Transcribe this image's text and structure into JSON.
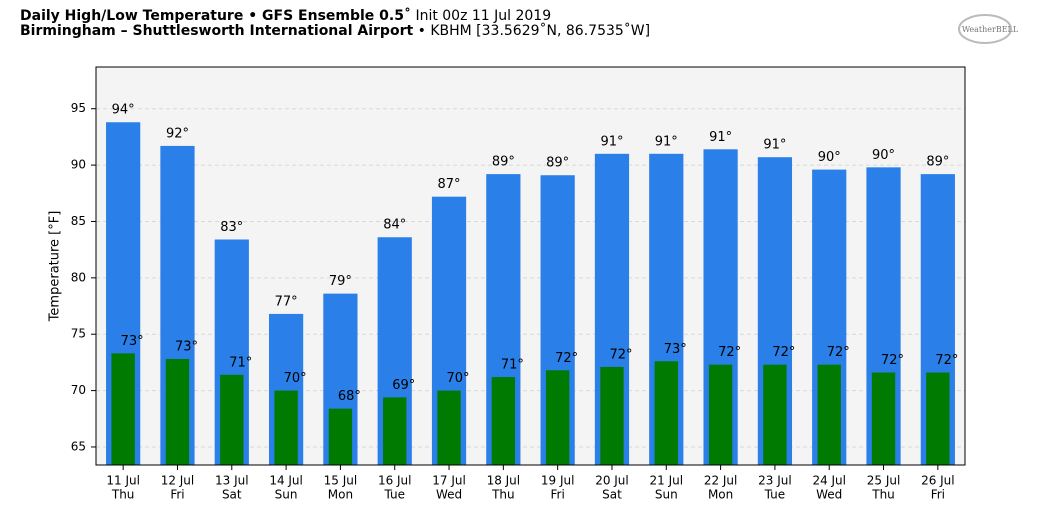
{
  "chart_data": {
    "type": "bar",
    "title": "Daily High/Low Temperature • GFS Ensemble 0.5˚",
    "title_note": "Init 00z 11 Jul 2019",
    "subtitle": "Birmingham – Shuttlesworth International Airport",
    "subtitle_note": "• KBHM [33.5629˚N, 86.7535˚W]",
    "logo": "WeatherBELL",
    "y_label": "Temperature [°F]",
    "categories": [
      [
        "11 Jul",
        "Thu"
      ],
      [
        "12 Jul",
        "Fri"
      ],
      [
        "13 Jul",
        "Sat"
      ],
      [
        "14 Jul",
        "Sun"
      ],
      [
        "15 Jul",
        "Mon"
      ],
      [
        "16 Jul",
        "Tue"
      ],
      [
        "17 Jul",
        "Wed"
      ],
      [
        "18 Jul",
        "Thu"
      ],
      [
        "19 Jul",
        "Fri"
      ],
      [
        "20 Jul",
        "Sat"
      ],
      [
        "21 Jul",
        "Sun"
      ],
      [
        "22 Jul",
        "Mon"
      ],
      [
        "23 Jul",
        "Tue"
      ],
      [
        "24 Jul",
        "Wed"
      ],
      [
        "25 Jul",
        "Thu"
      ],
      [
        "26 Jul",
        "Fri"
      ]
    ],
    "series": [
      {
        "name": "High",
        "color": "#2b7fe8",
        "values": [
          93.8,
          91.7,
          83.4,
          76.8,
          78.6,
          83.6,
          87.2,
          89.2,
          89.1,
          91.0,
          91.0,
          91.4,
          90.7,
          89.6,
          89.8,
          89.2
        ],
        "value_labels": [
          "94°",
          "92°",
          "83°",
          "77°",
          "79°",
          "84°",
          "87°",
          "89°",
          "89°",
          "91°",
          "91°",
          "91°",
          "91°",
          "90°",
          "90°",
          "89°"
        ]
      },
      {
        "name": "Low",
        "color": "#007a00",
        "values": [
          73.3,
          72.8,
          71.4,
          70.0,
          68.4,
          69.4,
          70.0,
          71.2,
          71.8,
          72.1,
          72.6,
          72.3,
          72.3,
          72.3,
          71.6,
          71.6
        ],
        "value_labels": [
          "73°",
          "73°",
          "71°",
          "70°",
          "68°",
          "69°",
          "70°",
          "71°",
          "72°",
          "72°",
          "73°",
          "72°",
          "72°",
          "72°",
          "72°",
          "72°"
        ]
      }
    ],
    "ylim": [
      63.4,
      98.7
    ],
    "yticks": [
      65,
      70,
      75,
      80,
      85,
      90,
      95
    ],
    "grid": true
  }
}
